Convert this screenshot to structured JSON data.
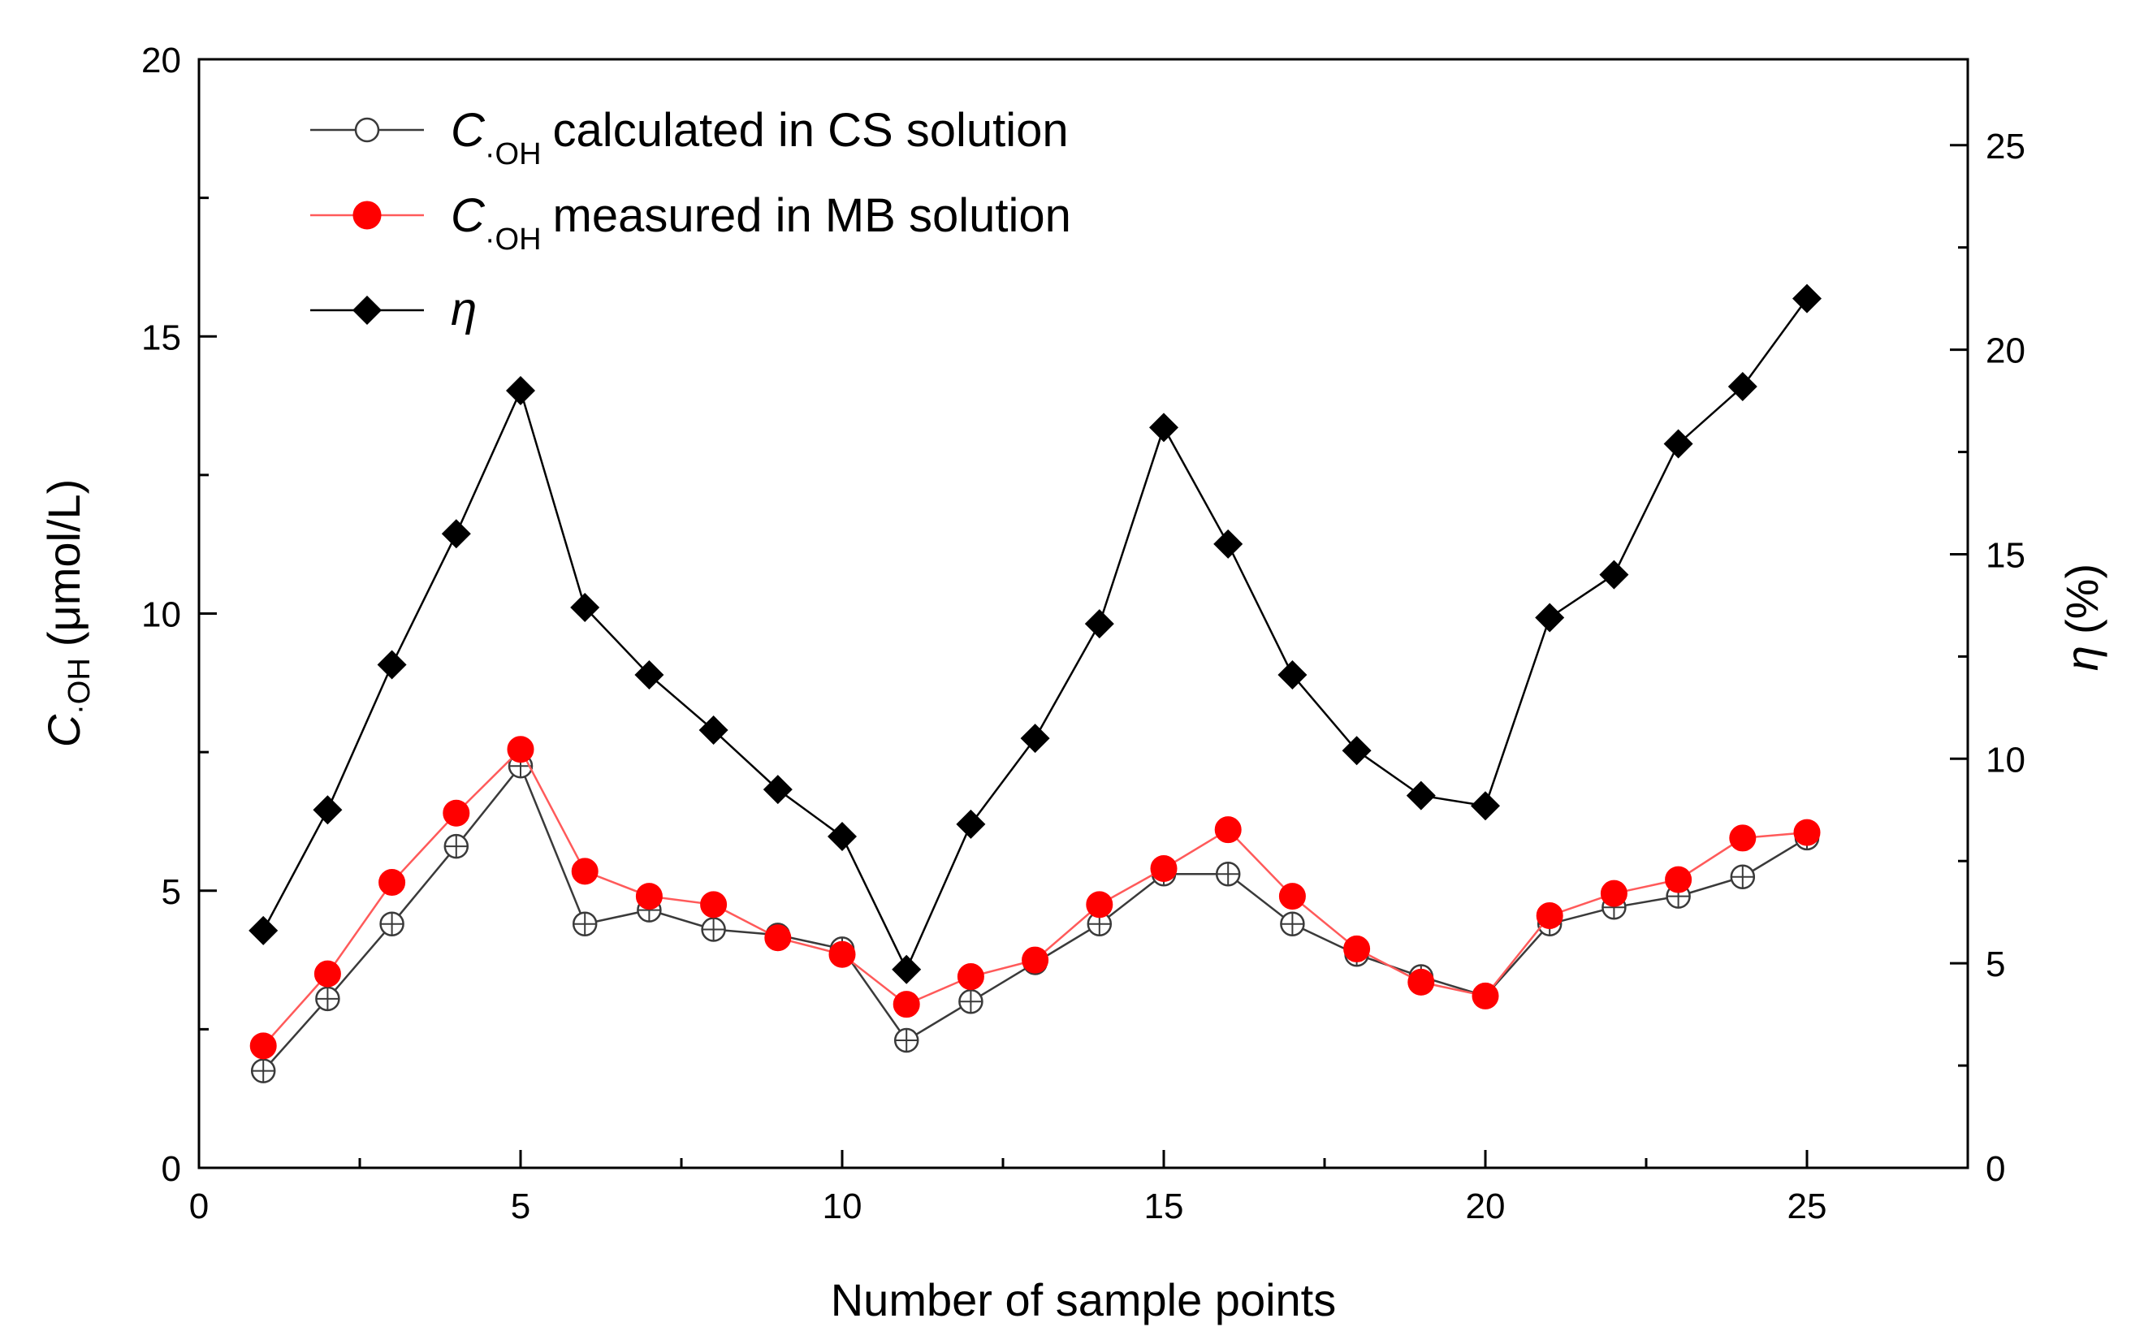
{
  "chart_data": {
    "type": "line",
    "xlabel": "Number of sample points",
    "xlim": [
      0,
      27.5
    ],
    "x_ticks": [
      "0",
      "5",
      "10",
      "15",
      "20",
      "25"
    ],
    "y_left": {
      "label_main": "C",
      "label_sub": "·OH",
      "label_unit": "(μmol/L)",
      "ylim": [
        0,
        20
      ],
      "ticks": [
        "0",
        "5",
        "10",
        "15",
        "20"
      ]
    },
    "y_right": {
      "label_main": "η",
      "label_unit": "(%)",
      "ylim": [
        0,
        27.1
      ],
      "ticks": [
        "0",
        "5",
        "10",
        "15",
        "20",
        "25"
      ]
    },
    "x": [
      1,
      2,
      3,
      4,
      5,
      6,
      7,
      8,
      9,
      10,
      11,
      12,
      13,
      14,
      15,
      16,
      17,
      18,
      19,
      20,
      21,
      22,
      23,
      24,
      25
    ],
    "series": [
      {
        "name": "calculated",
        "legend_main": "C",
        "legend_sub": "·OH",
        "legend_rest": "calculated in CS solution",
        "axis": "left",
        "color": "#3a3a3a",
        "marker": "circle-open",
        "values": [
          1.75,
          3.05,
          4.4,
          5.8,
          7.25,
          4.4,
          4.65,
          4.3,
          4.2,
          3.95,
          2.3,
          3.0,
          3.7,
          4.4,
          5.3,
          5.3,
          4.4,
          3.85,
          3.45,
          3.1,
          4.4,
          4.7,
          4.9,
          5.25,
          5.95
        ]
      },
      {
        "name": "measured",
        "legend_main": "C",
        "legend_sub": "·OH",
        "legend_rest": "measured in MB solution",
        "axis": "left",
        "color": "#ff0000",
        "line_color": "#ff5a5a",
        "marker": "circle-filled",
        "values": [
          2.2,
          3.5,
          5.15,
          6.4,
          7.55,
          5.35,
          4.9,
          4.75,
          4.15,
          3.85,
          2.95,
          3.45,
          3.75,
          4.75,
          5.4,
          6.1,
          4.9,
          3.95,
          3.35,
          3.1,
          4.55,
          4.95,
          5.2,
          5.95,
          6.05
        ]
      },
      {
        "name": "eta",
        "legend_main": "η",
        "axis": "right",
        "color": "#000000",
        "marker": "diamond-filled",
        "values": [
          5.8,
          8.75,
          12.3,
          15.5,
          19.0,
          13.7,
          12.05,
          10.7,
          9.25,
          8.1,
          4.85,
          8.4,
          10.5,
          13.3,
          18.1,
          15.25,
          12.05,
          10.2,
          9.1,
          8.85,
          13.45,
          14.5,
          17.7,
          19.1,
          21.25
        ]
      }
    ]
  }
}
